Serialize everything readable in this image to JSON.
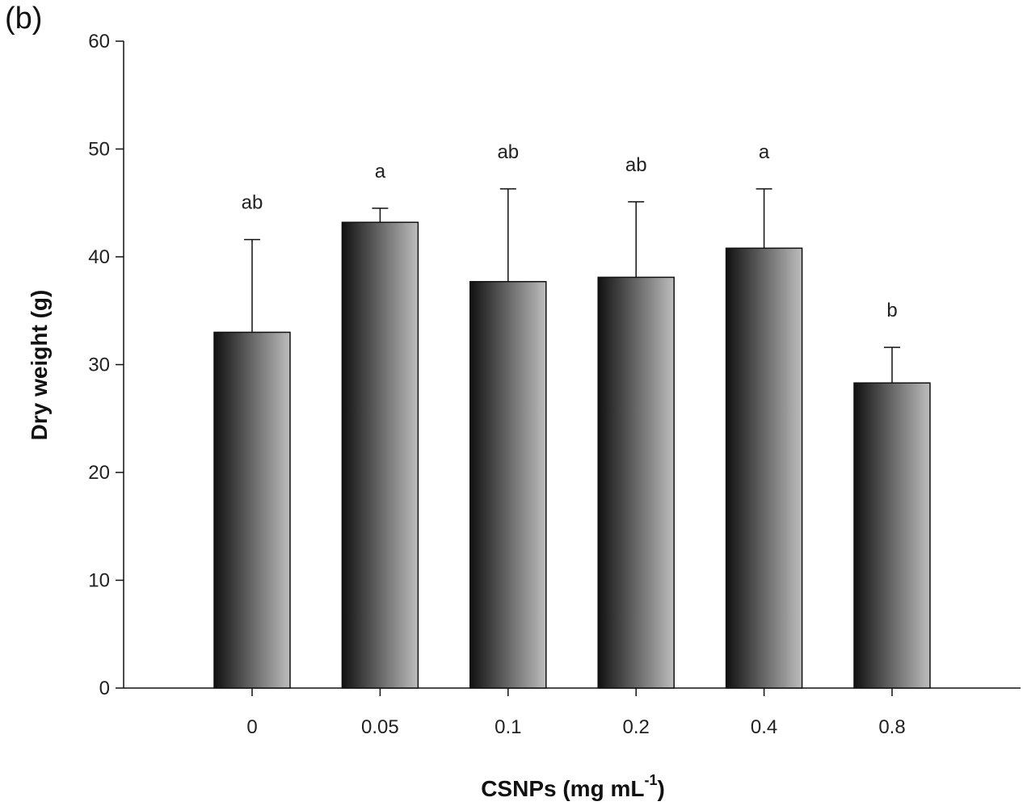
{
  "panel_label": "(b)",
  "chart_data": {
    "type": "bar",
    "categories": [
      "0",
      "0.05",
      "0.1",
      "0.2",
      "0.4",
      "0.8"
    ],
    "values": [
      33.0,
      43.2,
      37.7,
      38.1,
      40.8,
      28.3
    ],
    "errors": [
      8.6,
      1.3,
      8.6,
      7.0,
      5.5,
      3.3
    ],
    "significance": [
      "ab",
      "a",
      "ab",
      "ab",
      "a",
      "b"
    ],
    "xlabel": "CSNPs (mg mL",
    "xlabel_sup": "-1",
    "xlabel_end": ")",
    "ylabel": "Dry weight (g)",
    "ylim": [
      0,
      60
    ],
    "yticks": [
      0,
      10,
      20,
      30,
      40,
      50,
      60
    ],
    "grid": false,
    "bar_gradient": [
      "#111111",
      "#bdbdbd"
    ]
  }
}
